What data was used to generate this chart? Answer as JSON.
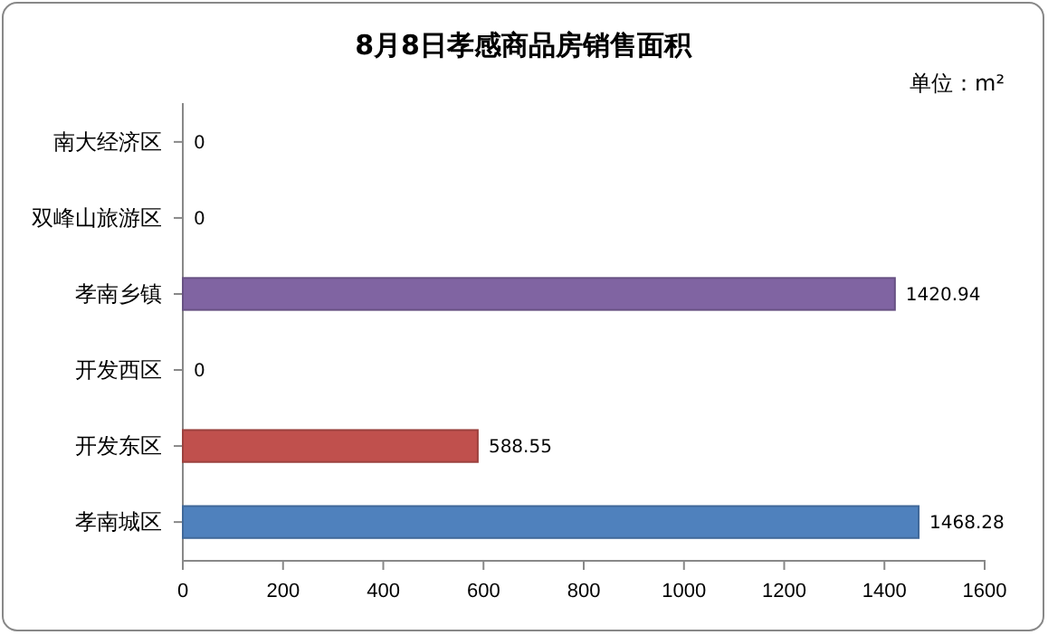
{
  "chart_data": {
    "type": "bar",
    "orientation": "horizontal",
    "title": "8月8日孝感商品房销售面积",
    "annotations": [
      "单位：m²"
    ],
    "categories": [
      "南大经济区",
      "双峰山旅游区",
      "孝南乡镇",
      "开发西区",
      "开发东区",
      "孝南城区"
    ],
    "values": [
      0,
      0,
      1420.94,
      0,
      588.55,
      1468.28
    ],
    "colors": [
      "#4f81bd",
      "#4f81bd",
      "#8064a2",
      "#4f81bd",
      "#c0504d",
      "#4f81bd"
    ],
    "xlim": [
      0,
      1600
    ],
    "xticks": [
      0,
      200,
      400,
      600,
      800,
      1000,
      1200,
      1400,
      1600
    ],
    "data_labels": true,
    "grid": false
  }
}
